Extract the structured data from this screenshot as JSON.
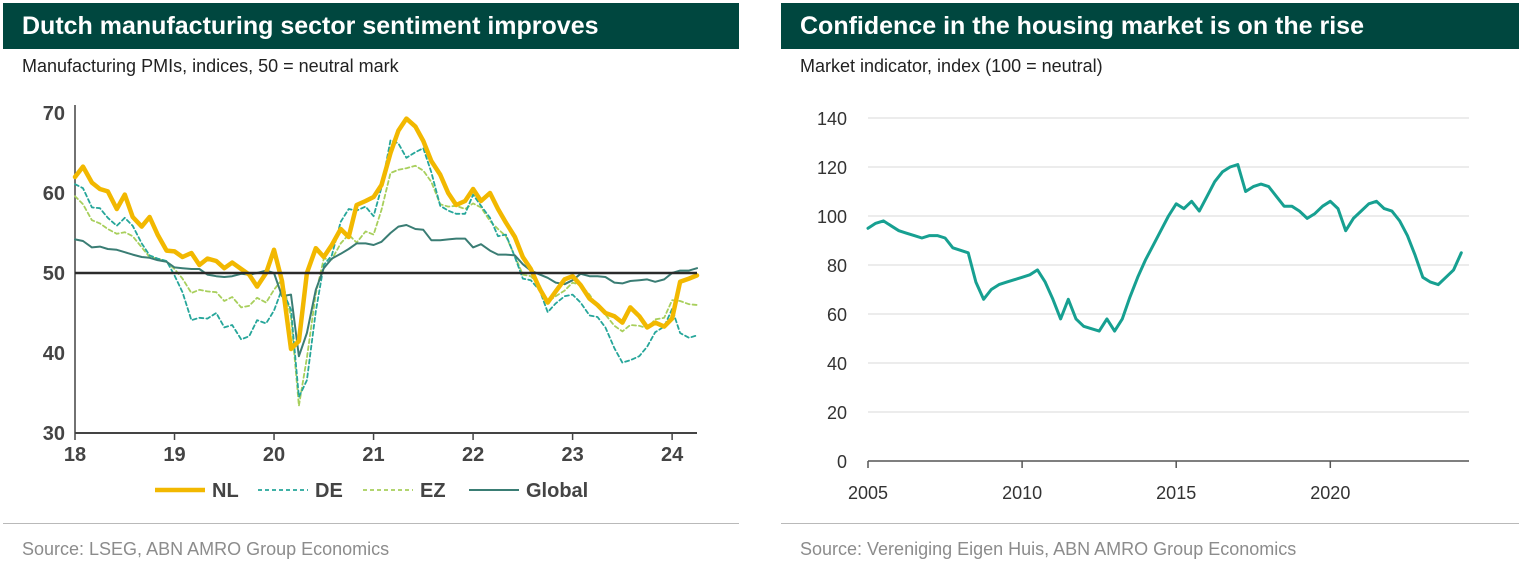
{
  "left": {
    "title": "Dutch manufacturing sector sentiment improves",
    "subtitle": "Manufacturing PMIs, indices, 50 = neutral mark",
    "source": "Source: LSEG, ABN AMRO Group Economics"
  },
  "right": {
    "title": "Confidence in the housing market is on the rise",
    "subtitle": "Market indicator, index (100 = neutral)",
    "source": "Source: Vereniging Eigen Huis, ABN AMRO Group Economics"
  },
  "chart_data": [
    {
      "type": "line",
      "title": "Dutch manufacturing sector sentiment improves",
      "subtitle": "Manufacturing PMIs, indices, 50 = neutral mark",
      "xlim": [
        2018.0,
        2024.25
      ],
      "ylim": [
        30,
        70
      ],
      "yticks": [
        30,
        40,
        50,
        60,
        70
      ],
      "xticks": [
        {
          "value": 2018,
          "label": "18"
        },
        {
          "value": 2019,
          "label": "19"
        },
        {
          "value": 2020,
          "label": "20"
        },
        {
          "value": 2021,
          "label": "21"
        },
        {
          "value": 2022,
          "label": "22"
        },
        {
          "value": 2023,
          "label": "23"
        },
        {
          "value": 2024,
          "label": "24"
        }
      ],
      "reference_line": 50,
      "grid": false,
      "legend_position": "bottom",
      "series": [
        {
          "name": "NL",
          "color": "#f2b800",
          "style": "solid-thick",
          "x": [
            2018.0,
            2018.08,
            2018.17,
            2018.25,
            2018.33,
            2018.42,
            2018.5,
            2018.58,
            2018.67,
            2018.75,
            2018.83,
            2018.92,
            2019.0,
            2019.08,
            2019.17,
            2019.25,
            2019.33,
            2019.42,
            2019.5,
            2019.58,
            2019.67,
            2019.75,
            2019.83,
            2019.92,
            2020.0,
            2020.08,
            2020.17,
            2020.25,
            2020.33,
            2020.42,
            2020.5,
            2020.58,
            2020.67,
            2020.75,
            2020.83,
            2020.92,
            2021.0,
            2021.08,
            2021.17,
            2021.25,
            2021.33,
            2021.42,
            2021.5,
            2021.58,
            2021.67,
            2021.75,
            2021.83,
            2021.92,
            2022.0,
            2022.08,
            2022.17,
            2022.25,
            2022.33,
            2022.42,
            2022.5,
            2022.58,
            2022.67,
            2022.75,
            2022.83,
            2022.92,
            2023.0,
            2023.08,
            2023.17,
            2023.25,
            2023.33,
            2023.42,
            2023.5,
            2023.58,
            2023.67,
            2023.75,
            2023.83,
            2023.92,
            2024.0,
            2024.08,
            2024.17,
            2024.25
          ],
          "values": [
            62.0,
            63.3,
            61.3,
            60.5,
            60.2,
            58.0,
            59.8,
            57.0,
            55.8,
            57.0,
            54.8,
            52.8,
            52.7,
            52.0,
            52.5,
            51.0,
            51.8,
            51.5,
            50.6,
            51.3,
            50.5,
            49.8,
            48.3,
            50.0,
            52.9,
            49.0,
            40.5,
            41.5,
            50.0,
            53.1,
            52.0,
            53.5,
            55.5,
            54.5,
            58.5,
            59.0,
            59.5,
            61.0,
            65.0,
            67.8,
            69.3,
            68.3,
            66.5,
            64.0,
            62.3,
            60.0,
            58.5,
            59.0,
            60.5,
            59.0,
            60.0,
            58.0,
            56.3,
            54.5,
            52.0,
            50.5,
            48.0,
            46.3,
            47.7,
            49.2,
            49.6,
            48.5,
            46.8,
            46.0,
            45.0,
            44.6,
            43.8,
            45.7,
            44.6,
            43.2,
            43.8,
            43.3,
            44.3,
            48.9,
            49.3,
            49.7
          ]
        },
        {
          "name": "DE",
          "color": "#26a69a",
          "style": "dashed",
          "x": [
            2018.0,
            2018.08,
            2018.17,
            2018.25,
            2018.33,
            2018.42,
            2018.5,
            2018.58,
            2018.67,
            2018.75,
            2018.83,
            2018.92,
            2019.0,
            2019.08,
            2019.17,
            2019.25,
            2019.33,
            2019.42,
            2019.5,
            2019.58,
            2019.67,
            2019.75,
            2019.83,
            2019.92,
            2020.0,
            2020.08,
            2020.17,
            2020.25,
            2020.33,
            2020.42,
            2020.5,
            2020.58,
            2020.67,
            2020.75,
            2020.83,
            2020.92,
            2021.0,
            2021.08,
            2021.17,
            2021.25,
            2021.33,
            2021.42,
            2021.5,
            2021.58,
            2021.67,
            2021.75,
            2021.83,
            2021.92,
            2022.0,
            2022.08,
            2022.17,
            2022.25,
            2022.33,
            2022.42,
            2022.5,
            2022.58,
            2022.67,
            2022.75,
            2022.83,
            2022.92,
            2023.0,
            2023.08,
            2023.17,
            2023.25,
            2023.33,
            2023.42,
            2023.5,
            2023.58,
            2023.67,
            2023.75,
            2023.83,
            2023.92,
            2024.0,
            2024.08,
            2024.17,
            2024.25
          ],
          "values": [
            61.1,
            60.6,
            58.2,
            58.1,
            56.9,
            55.9,
            56.9,
            55.9,
            53.7,
            52.2,
            51.8,
            51.5,
            49.7,
            47.6,
            44.1,
            44.4,
            44.3,
            45.0,
            43.2,
            43.5,
            41.7,
            42.1,
            44.1,
            43.7,
            45.3,
            48.0,
            45.4,
            34.5,
            36.6,
            45.2,
            51.0,
            52.2,
            56.4,
            58.0,
            57.8,
            58.3,
            57.1,
            60.7,
            66.6,
            66.2,
            64.4,
            65.1,
            65.6,
            62.6,
            58.4,
            57.8,
            57.4,
            57.4,
            59.8,
            58.4,
            56.9,
            54.6,
            54.8,
            52.0,
            49.3,
            49.1,
            47.8,
            45.1,
            46.2,
            47.1,
            47.3,
            46.3,
            44.7,
            44.5,
            43.2,
            40.6,
            38.8,
            39.1,
            39.6,
            40.8,
            42.6,
            43.3,
            45.5,
            42.5,
            41.9,
            42.2
          ]
        },
        {
          "name": "EZ",
          "color": "#a8cf5c",
          "style": "dashed",
          "x": [
            2018.0,
            2018.08,
            2018.17,
            2018.25,
            2018.33,
            2018.42,
            2018.5,
            2018.58,
            2018.67,
            2018.75,
            2018.83,
            2018.92,
            2019.0,
            2019.08,
            2019.17,
            2019.25,
            2019.33,
            2019.42,
            2019.5,
            2019.58,
            2019.67,
            2019.75,
            2019.83,
            2019.92,
            2020.0,
            2020.08,
            2020.17,
            2020.25,
            2020.33,
            2020.42,
            2020.5,
            2020.58,
            2020.67,
            2020.75,
            2020.83,
            2020.92,
            2021.0,
            2021.08,
            2021.17,
            2021.25,
            2021.33,
            2021.42,
            2021.5,
            2021.58,
            2021.67,
            2021.75,
            2021.83,
            2021.92,
            2022.0,
            2022.08,
            2022.17,
            2022.25,
            2022.33,
            2022.42,
            2022.5,
            2022.58,
            2022.67,
            2022.75,
            2022.83,
            2022.92,
            2023.0,
            2023.08,
            2023.17,
            2023.25,
            2023.33,
            2023.42,
            2023.5,
            2023.58,
            2023.67,
            2023.75,
            2023.83,
            2023.92,
            2024.0,
            2024.08,
            2024.17,
            2024.25
          ],
          "values": [
            59.6,
            58.6,
            56.6,
            56.2,
            55.5,
            54.9,
            55.1,
            54.6,
            53.2,
            52.0,
            51.8,
            51.4,
            50.5,
            49.3,
            47.5,
            47.9,
            47.7,
            47.6,
            46.5,
            47.0,
            45.7,
            45.9,
            46.9,
            46.3,
            47.9,
            49.2,
            44.5,
            33.4,
            39.4,
            47.4,
            51.8,
            51.7,
            53.7,
            54.8,
            53.8,
            55.2,
            54.8,
            57.9,
            62.5,
            62.9,
            63.1,
            63.4,
            62.8,
            61.4,
            58.6,
            58.3,
            58.4,
            58.0,
            58.7,
            58.2,
            56.5,
            55.5,
            54.6,
            52.1,
            49.8,
            49.6,
            48.4,
            46.4,
            47.1,
            47.8,
            48.8,
            48.5,
            47.3,
            45.8,
            44.8,
            43.4,
            42.7,
            43.5,
            43.4,
            43.1,
            44.2,
            44.4,
            46.6,
            46.5,
            46.1,
            46.0
          ]
        },
        {
          "name": "Global",
          "color": "#3a7d74",
          "style": "solid",
          "x": [
            2018.0,
            2018.08,
            2018.17,
            2018.25,
            2018.33,
            2018.42,
            2018.5,
            2018.58,
            2018.67,
            2018.75,
            2018.83,
            2018.92,
            2019.0,
            2019.08,
            2019.17,
            2019.25,
            2019.33,
            2019.42,
            2019.5,
            2019.58,
            2019.67,
            2019.75,
            2019.83,
            2019.92,
            2020.0,
            2020.08,
            2020.17,
            2020.25,
            2020.33,
            2020.42,
            2020.5,
            2020.58,
            2020.67,
            2020.75,
            2020.83,
            2020.92,
            2021.0,
            2021.08,
            2021.17,
            2021.25,
            2021.33,
            2021.42,
            2021.5,
            2021.58,
            2021.67,
            2021.75,
            2021.83,
            2021.92,
            2022.0,
            2022.08,
            2022.17,
            2022.25,
            2022.33,
            2022.42,
            2022.5,
            2022.58,
            2022.67,
            2022.75,
            2022.83,
            2022.92,
            2023.0,
            2023.08,
            2023.17,
            2023.25,
            2023.33,
            2023.42,
            2023.5,
            2023.58,
            2023.67,
            2023.75,
            2023.83,
            2023.92,
            2024.0,
            2024.08,
            2024.17,
            2024.25
          ],
          "values": [
            54.2,
            54.0,
            53.2,
            53.3,
            53.0,
            52.9,
            52.6,
            52.3,
            52.0,
            51.9,
            51.6,
            51.4,
            50.7,
            50.6,
            50.5,
            50.5,
            49.8,
            49.6,
            49.5,
            49.6,
            49.9,
            49.8,
            50.0,
            50.3,
            50.0,
            47.1,
            47.3,
            39.6,
            42.5,
            47.9,
            50.6,
            51.8,
            52.4,
            53.0,
            53.7,
            53.7,
            53.5,
            53.9,
            55.0,
            55.8,
            56.0,
            55.5,
            55.4,
            54.1,
            54.1,
            54.2,
            54.3,
            54.3,
            53.2,
            53.6,
            52.8,
            52.3,
            52.3,
            52.2,
            51.1,
            50.3,
            49.8,
            49.4,
            48.8,
            48.6,
            49.1,
            49.9,
            49.6,
            49.6,
            49.5,
            48.8,
            48.7,
            49.0,
            49.1,
            49.2,
            48.9,
            49.2,
            50.0,
            50.3,
            50.3,
            50.6
          ]
        }
      ]
    },
    {
      "type": "line",
      "title": "Confidence in the housing market is on the rise",
      "subtitle": "Market indicator, index (100 = neutral)",
      "xlim": [
        2005.0,
        2024.5
      ],
      "ylim": [
        0,
        140
      ],
      "yticks": [
        0,
        20,
        40,
        60,
        80,
        100,
        120,
        140
      ],
      "xticks": [
        {
          "value": 2005,
          "label": "2005"
        },
        {
          "value": 2010,
          "label": "2010"
        },
        {
          "value": 2015,
          "label": "2015"
        },
        {
          "value": 2020,
          "label": "2020"
        }
      ],
      "grid": true,
      "series": [
        {
          "name": "",
          "color": "#17a091",
          "x": [
            2005.0,
            2005.25,
            2005.5,
            2005.75,
            2006.0,
            2006.25,
            2006.5,
            2006.75,
            2007.0,
            2007.25,
            2007.5,
            2007.75,
            2008.0,
            2008.25,
            2008.5,
            2008.75,
            2009.0,
            2009.25,
            2009.5,
            2009.75,
            2010.0,
            2010.25,
            2010.5,
            2010.75,
            2011.0,
            2011.25,
            2011.5,
            2011.75,
            2012.0,
            2012.25,
            2012.5,
            2012.75,
            2013.0,
            2013.25,
            2013.5,
            2013.75,
            2014.0,
            2014.25,
            2014.5,
            2014.75,
            2015.0,
            2015.25,
            2015.5,
            2015.75,
            2016.0,
            2016.25,
            2016.5,
            2016.75,
            2017.0,
            2017.25,
            2017.5,
            2017.75,
            2018.0,
            2018.25,
            2018.5,
            2018.75,
            2019.0,
            2019.25,
            2019.5,
            2019.75,
            2020.0,
            2020.25,
            2020.5,
            2020.75,
            2021.0,
            2021.25,
            2021.5,
            2021.75,
            2022.0,
            2022.25,
            2022.5,
            2022.75,
            2023.0,
            2023.25,
            2023.5,
            2023.75,
            2024.0,
            2024.25
          ],
          "values": [
            95,
            97,
            98,
            96,
            94,
            93,
            92,
            91,
            92,
            92,
            91,
            87,
            86,
            85,
            73,
            66,
            70,
            72,
            73,
            74,
            75,
            76,
            78,
            73,
            66,
            58,
            66,
            58,
            55,
            54,
            53,
            58,
            53,
            58,
            67,
            75,
            82,
            88,
            94,
            100,
            105,
            103,
            106,
            102,
            108,
            114,
            118,
            120,
            121,
            110,
            112,
            113,
            112,
            108,
            104,
            104,
            102,
            99,
            101,
            104,
            106,
            103,
            94,
            99,
            102,
            105,
            106,
            103,
            102,
            98,
            92,
            84,
            75,
            73,
            72,
            75,
            78,
            85
          ]
        }
      ]
    }
  ]
}
